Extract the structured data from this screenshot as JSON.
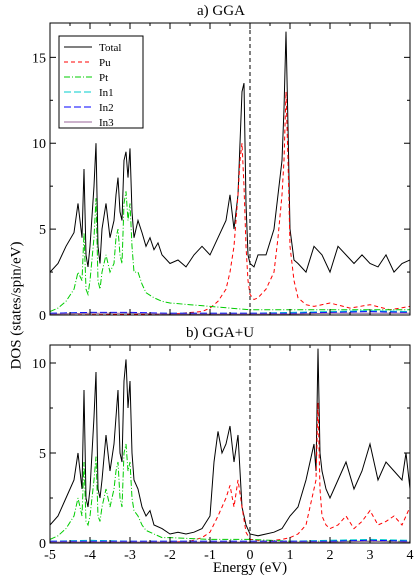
{
  "figure": {
    "ylabel": "DOS (states/spin/eV)",
    "xlabel": "Energy (eV)"
  },
  "chart_data": [
    {
      "type": "line",
      "title": "a) GGA",
      "xlim": [
        -5,
        4
      ],
      "ylim": [
        0,
        17
      ],
      "xticks": [
        -5,
        -4,
        -3,
        -2,
        -1,
        0,
        1,
        2,
        3,
        4
      ],
      "yticks": [
        0,
        5,
        10,
        15
      ],
      "legend_position": "top-left",
      "fermi_level": 0,
      "series": [
        {
          "name": "Total",
          "color": "#000000",
          "dash": "",
          "x": [
            -5.0,
            -4.8,
            -4.6,
            -4.4,
            -4.3,
            -4.2,
            -4.15,
            -4.1,
            -4.05,
            -4.0,
            -3.9,
            -3.85,
            -3.8,
            -3.75,
            -3.7,
            -3.6,
            -3.5,
            -3.4,
            -3.35,
            -3.3,
            -3.25,
            -3.2,
            -3.15,
            -3.1,
            -3.05,
            -3.0,
            -2.95,
            -2.9,
            -2.8,
            -2.7,
            -2.6,
            -2.5,
            -2.4,
            -2.3,
            -2.2,
            -2.0,
            -1.8,
            -1.6,
            -1.4,
            -1.2,
            -1.0,
            -0.8,
            -0.6,
            -0.5,
            -0.4,
            -0.3,
            -0.2,
            -0.15,
            -0.1,
            -0.05,
            0.0,
            0.1,
            0.2,
            0.4,
            0.6,
            0.7,
            0.8,
            0.85,
            0.9,
            0.95,
            1.0,
            1.1,
            1.2,
            1.4,
            1.6,
            1.8,
            2.0,
            2.2,
            2.4,
            2.6,
            2.8,
            3.0,
            3.2,
            3.4,
            3.6,
            3.8,
            4.0
          ],
          "y": [
            2.5,
            3.0,
            4.0,
            4.8,
            6.5,
            4.5,
            8.5,
            3.5,
            2.8,
            4.0,
            7.5,
            10.0,
            4.0,
            3.0,
            5.0,
            6.5,
            4.5,
            5.5,
            7.0,
            8.0,
            6.0,
            5.5,
            9.0,
            9.5,
            8.0,
            9.7,
            6.0,
            4.5,
            5.5,
            4.8,
            4.0,
            4.5,
            3.8,
            4.2,
            3.5,
            3.0,
            3.2,
            2.8,
            3.5,
            4.0,
            3.5,
            4.5,
            5.5,
            7.0,
            5.0,
            7.0,
            13.0,
            13.5,
            6.5,
            3.5,
            3.0,
            2.8,
            3.5,
            3.5,
            5.0,
            7.0,
            9.0,
            12.0,
            16.5,
            11.0,
            5.0,
            3.2,
            3.0,
            2.5,
            4.0,
            3.5,
            2.5,
            4.0,
            3.5,
            3.0,
            3.5,
            3.0,
            2.8,
            3.5,
            2.5,
            3.0,
            3.2
          ]
        },
        {
          "name": "Pu",
          "color": "#ff0000",
          "dash": "4,3",
          "x": [
            -5.0,
            -2.0,
            -1.2,
            -1.0,
            -0.8,
            -0.6,
            -0.5,
            -0.4,
            -0.3,
            -0.25,
            -0.2,
            -0.15,
            -0.1,
            -0.05,
            0.0,
            0.1,
            0.2,
            0.4,
            0.6,
            0.7,
            0.8,
            0.85,
            0.9,
            0.95,
            1.0,
            1.1,
            1.2,
            1.4,
            1.6,
            2.0,
            2.5,
            3.0,
            3.5,
            4.0
          ],
          "y": [
            0.0,
            0.05,
            0.2,
            0.4,
            0.8,
            1.5,
            2.5,
            4.0,
            7.0,
            9.0,
            10.0,
            7.5,
            4.0,
            2.0,
            1.2,
            0.9,
            1.0,
            1.5,
            2.5,
            4.5,
            7.0,
            9.0,
            13.0,
            9.0,
            4.0,
            2.0,
            1.0,
            0.6,
            0.5,
            0.7,
            0.4,
            0.6,
            0.3,
            0.5
          ]
        },
        {
          "name": "Pt",
          "color": "#00cc00",
          "dash": "6,2,1,2",
          "x": [
            -5.0,
            -4.8,
            -4.6,
            -4.4,
            -4.3,
            -4.2,
            -4.15,
            -4.1,
            -4.05,
            -4.0,
            -3.9,
            -3.85,
            -3.8,
            -3.75,
            -3.7,
            -3.6,
            -3.5,
            -3.4,
            -3.35,
            -3.3,
            -3.25,
            -3.2,
            -3.15,
            -3.1,
            -3.05,
            -3.0,
            -2.95,
            -2.9,
            -2.8,
            -2.7,
            -2.6,
            -2.4,
            -2.2,
            -2.0,
            -1.5,
            -1.0,
            -0.5,
            0.0,
            1.0,
            2.0,
            3.0,
            4.0
          ],
          "y": [
            0.2,
            0.4,
            0.8,
            1.5,
            2.5,
            2.0,
            4.8,
            1.5,
            1.2,
            2.0,
            4.5,
            6.8,
            2.0,
            1.5,
            2.5,
            3.5,
            2.5,
            3.0,
            4.5,
            5.0,
            3.5,
            3.0,
            6.5,
            7.2,
            5.5,
            6.5,
            4.0,
            2.5,
            2.5,
            1.8,
            1.3,
            1.0,
            0.8,
            0.7,
            0.6,
            0.5,
            0.4,
            0.3,
            0.3,
            0.3,
            0.3,
            0.3
          ]
        },
        {
          "name": "In1",
          "color": "#00cccc",
          "dash": "7,3",
          "x": [
            -5.0,
            -4.0,
            -3.0,
            -2.0,
            -1.0,
            0.0,
            1.0,
            2.0,
            3.0,
            4.0
          ],
          "y": [
            0.1,
            0.15,
            0.1,
            0.1,
            0.1,
            0.1,
            0.15,
            0.2,
            0.25,
            0.2
          ]
        },
        {
          "name": "In2",
          "color": "#0000ff",
          "dash": "7,3",
          "x": [
            -5.0,
            -4.0,
            -3.0,
            -2.0,
            -1.0,
            0.0,
            1.0,
            2.0,
            3.0,
            4.0
          ],
          "y": [
            0.1,
            0.15,
            0.15,
            0.1,
            0.1,
            0.1,
            0.1,
            0.15,
            0.2,
            0.15
          ]
        },
        {
          "name": "In3",
          "color": "#996699",
          "dash": "",
          "x": [
            -5.0,
            -4.0,
            -3.0,
            -2.0,
            -1.0,
            0.0,
            1.0,
            2.0,
            3.0,
            4.0
          ],
          "y": [
            0.05,
            0.1,
            0.1,
            0.05,
            0.05,
            0.05,
            0.05,
            0.1,
            0.1,
            0.1
          ]
        }
      ]
    },
    {
      "type": "line",
      "title": "b) GGA+U",
      "xlim": [
        -5,
        4
      ],
      "ylim": [
        0,
        11
      ],
      "xticks": [
        -5,
        -4,
        -3,
        -2,
        -1,
        0,
        1,
        2,
        3,
        4
      ],
      "yticks": [
        0,
        5,
        10
      ],
      "fermi_level": 0,
      "series": [
        {
          "name": "Total",
          "color": "#000000",
          "dash": "",
          "x": [
            -5.0,
            -4.8,
            -4.6,
            -4.4,
            -4.3,
            -4.2,
            -4.15,
            -4.1,
            -4.05,
            -4.0,
            -3.9,
            -3.85,
            -3.8,
            -3.75,
            -3.7,
            -3.6,
            -3.5,
            -3.4,
            -3.35,
            -3.3,
            -3.25,
            -3.2,
            -3.15,
            -3.1,
            -3.05,
            -3.0,
            -2.95,
            -2.9,
            -2.8,
            -2.7,
            -2.6,
            -2.5,
            -2.4,
            -2.2,
            -2.0,
            -1.8,
            -1.6,
            -1.4,
            -1.2,
            -1.0,
            -0.9,
            -0.8,
            -0.7,
            -0.6,
            -0.5,
            -0.4,
            -0.3,
            -0.2,
            -0.1,
            0.0,
            0.2,
            0.4,
            0.6,
            0.8,
            1.0,
            1.2,
            1.4,
            1.5,
            1.6,
            1.65,
            1.7,
            1.75,
            1.8,
            1.9,
            2.0,
            2.2,
            2.4,
            2.6,
            2.8,
            3.0,
            3.2,
            3.4,
            3.6,
            3.8,
            3.9,
            4.0
          ],
          "y": [
            1.0,
            1.5,
            2.5,
            3.5,
            5.0,
            3.0,
            8.5,
            2.5,
            2.0,
            3.0,
            7.0,
            9.5,
            3.0,
            2.5,
            3.5,
            6.0,
            4.0,
            5.5,
            7.0,
            8.5,
            5.0,
            4.5,
            9.0,
            10.2,
            7.5,
            9.0,
            5.0,
            3.5,
            3.0,
            2.0,
            1.5,
            1.8,
            1.0,
            0.8,
            0.5,
            0.6,
            0.5,
            0.6,
            0.8,
            1.5,
            4.5,
            6.2,
            5.0,
            5.5,
            6.5,
            4.5,
            6.0,
            2.0,
            1.0,
            0.5,
            0.4,
            0.5,
            0.6,
            0.8,
            1.5,
            2.0,
            3.5,
            4.5,
            5.5,
            4.0,
            10.8,
            5.0,
            4.0,
            3.0,
            2.5,
            3.5,
            4.5,
            3.0,
            4.0,
            5.5,
            3.5,
            4.5,
            4.0,
            3.5,
            5.0,
            3.0
          ]
        },
        {
          "name": "Pu",
          "color": "#ff0000",
          "dash": "4,3",
          "x": [
            -5.0,
            -2.0,
            -1.5,
            -1.2,
            -1.0,
            -0.8,
            -0.6,
            -0.5,
            -0.4,
            -0.3,
            -0.2,
            -0.1,
            0.0,
            0.4,
            0.8,
            1.0,
            1.2,
            1.4,
            1.5,
            1.6,
            1.65,
            1.7,
            1.75,
            1.8,
            1.9,
            2.0,
            2.2,
            2.4,
            2.6,
            2.8,
            3.0,
            3.2,
            3.4,
            3.6,
            3.8,
            4.0
          ],
          "y": [
            0.0,
            0.05,
            0.1,
            0.3,
            0.6,
            1.5,
            2.5,
            3.2,
            2.0,
            3.5,
            2.0,
            0.6,
            0.2,
            0.1,
            0.2,
            0.3,
            0.5,
            1.0,
            2.0,
            3.0,
            3.5,
            7.8,
            3.0,
            1.5,
            1.0,
            0.8,
            1.0,
            1.5,
            0.8,
            1.2,
            1.8,
            1.0,
            1.2,
            1.5,
            1.0,
            2.0
          ]
        },
        {
          "name": "Pt",
          "color": "#00cc00",
          "dash": "6,2,1,2",
          "x": [
            -5.0,
            -4.8,
            -4.6,
            -4.4,
            -4.3,
            -4.2,
            -4.15,
            -4.1,
            -4.05,
            -4.0,
            -3.9,
            -3.85,
            -3.8,
            -3.75,
            -3.7,
            -3.6,
            -3.5,
            -3.4,
            -3.35,
            -3.3,
            -3.25,
            -3.2,
            -3.15,
            -3.1,
            -3.05,
            -3.0,
            -2.95,
            -2.9,
            -2.8,
            -2.7,
            -2.6,
            -2.4,
            -2.2,
            -2.0,
            -1.0,
            0.0,
            1.0,
            2.0,
            3.0,
            4.0
          ],
          "y": [
            0.2,
            0.4,
            0.8,
            1.5,
            2.5,
            1.5,
            4.5,
            1.2,
            1.0,
            1.5,
            3.5,
            4.8,
            1.5,
            1.2,
            2.0,
            3.0,
            2.0,
            3.0,
            4.0,
            4.5,
            2.5,
            2.0,
            5.0,
            5.5,
            4.0,
            4.5,
            2.5,
            1.8,
            1.5,
            1.0,
            0.7,
            0.5,
            0.3,
            0.3,
            0.2,
            0.2,
            0.1,
            0.1,
            0.1,
            0.1
          ]
        },
        {
          "name": "In1",
          "color": "#00cccc",
          "dash": "7,3",
          "x": [
            -5.0,
            -4.0,
            -3.0,
            -2.0,
            -1.0,
            0.0,
            1.0,
            2.0,
            3.0,
            4.0
          ],
          "y": [
            0.1,
            0.15,
            0.1,
            0.1,
            0.1,
            0.1,
            0.1,
            0.15,
            0.2,
            0.15
          ]
        },
        {
          "name": "In2",
          "color": "#0000ff",
          "dash": "7,3",
          "x": [
            -5.0,
            -4.0,
            -3.0,
            -2.0,
            -1.0,
            0.0,
            1.0,
            2.0,
            3.0,
            4.0
          ],
          "y": [
            0.1,
            0.1,
            0.1,
            0.1,
            0.1,
            0.1,
            0.1,
            0.1,
            0.15,
            0.1
          ]
        },
        {
          "name": "In3",
          "color": "#996699",
          "dash": "",
          "x": [
            -5.0,
            -4.0,
            -3.0,
            -2.0,
            -1.0,
            0.0,
            1.0,
            2.0,
            3.0,
            4.0
          ],
          "y": [
            0.05,
            0.05,
            0.05,
            0.05,
            0.05,
            0.05,
            0.05,
            0.05,
            0.1,
            0.05
          ]
        }
      ]
    }
  ]
}
